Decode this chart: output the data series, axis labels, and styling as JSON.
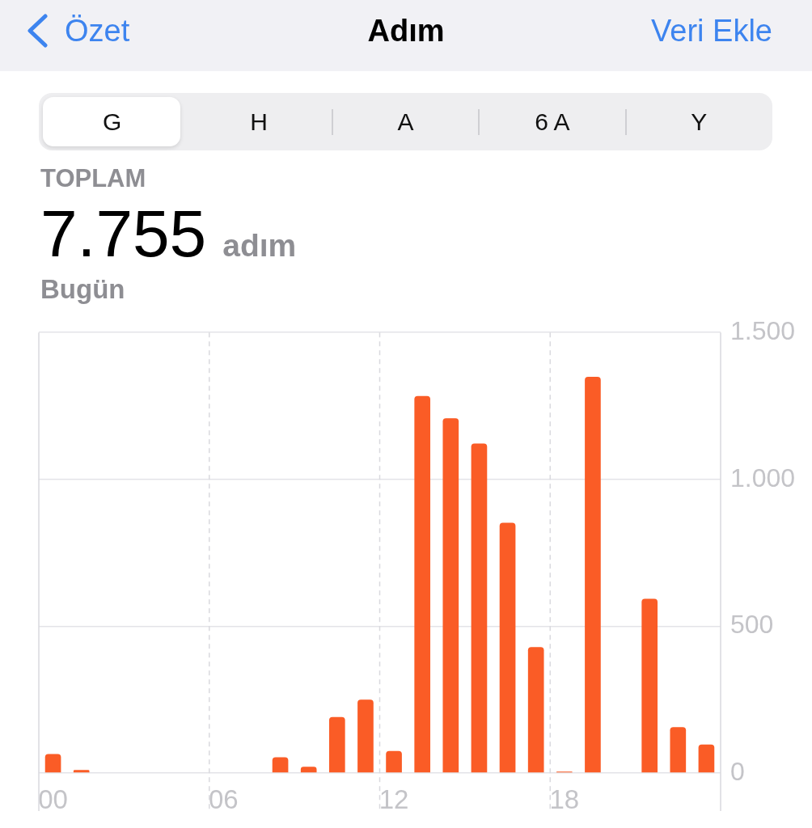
{
  "chart_data": {
    "type": "bar",
    "title": "Adım",
    "annotations": [
      "Özet",
      "Veri Ekle",
      "G",
      "H",
      "A",
      "6 A",
      "Y",
      "TOPLAM",
      "7.755",
      "adım",
      "Bugün"
    ],
    "categories": [
      "00",
      null,
      null,
      null,
      null,
      null,
      "06",
      null,
      null,
      null,
      null,
      null,
      "12",
      null,
      null,
      null,
      null,
      null,
      "18",
      null,
      null,
      null,
      null,
      null
    ],
    "values": [
      65,
      10,
      null,
      null,
      null,
      null,
      null,
      null,
      54,
      21,
      191,
      250,
      75,
      1284,
      1208,
      1122,
      852,
      429,
      5,
      1349,
      null,
      593,
      156,
      97
    ],
    "color": "#fa5c26",
    "ylim": [
      0,
      1500
    ],
    "yticks": [
      0,
      500,
      {
        "value": 1000,
        "label": "1.000"
      },
      {
        "value": 1500,
        "label": "1.500"
      }
    ],
    "grid": true
  }
}
